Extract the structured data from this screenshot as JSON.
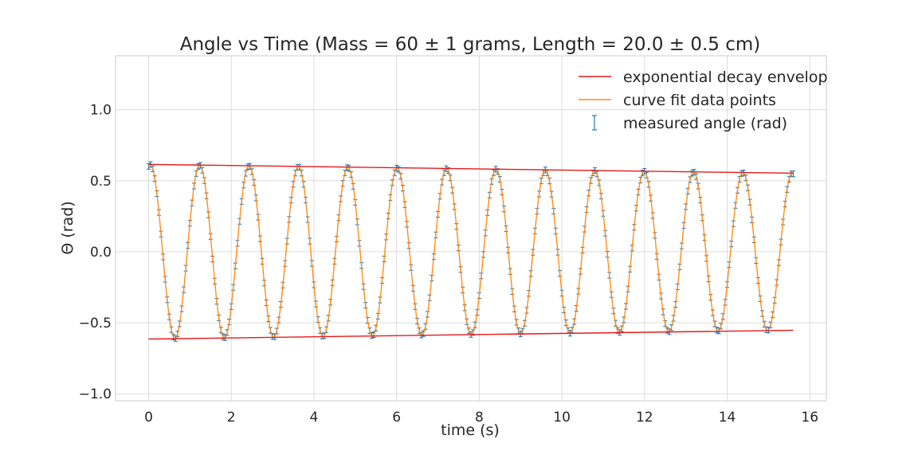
{
  "chart_data": {
    "type": "line",
    "title": "Angle vs Time (Mass = 60 ± 1 grams, Length = 20.0 ± 0.5 cm)",
    "xlabel": "time (s)",
    "ylabel": "Θ (rad)",
    "xlim": [
      -0.8,
      16.4
    ],
    "ylim": [
      -1.05,
      1.38
    ],
    "x_ticks": [
      0,
      2,
      4,
      6,
      8,
      10,
      12,
      14,
      16
    ],
    "x_tick_labels": [
      "0",
      "2",
      "4",
      "6",
      "8",
      "10",
      "12",
      "14",
      "16"
    ],
    "y_ticks": [
      -1.0,
      -0.5,
      0.0,
      0.5,
      1.0
    ],
    "y_tick_labels": [
      "−1.0",
      "−0.5",
      "0.0",
      "0.5",
      "1.0"
    ],
    "grid": true,
    "legend_position": "top-right",
    "series": [
      {
        "name": "exponential decay envelop",
        "kind": "line",
        "color": "#e8191b",
        "x": [
          0,
          15.6
        ],
        "upper": [
          0.615,
          0.553
        ],
        "lower": [
          -0.615,
          -0.553
        ]
      },
      {
        "name": "curve fit data points",
        "kind": "line",
        "color": "#ff8c1a",
        "model": {
          "amplitude": 0.615,
          "decay_rate": 0.0068,
          "period": 1.195,
          "phase": 1.36,
          "t_start": 0,
          "t_end": 15.6
        }
      },
      {
        "name": "measured angle (rad)",
        "kind": "errorbar",
        "color": "#1f77b4",
        "yerr": 0.02,
        "sample_interval": 0.05,
        "t_start": 0,
        "t_end": 15.6
      }
    ]
  }
}
